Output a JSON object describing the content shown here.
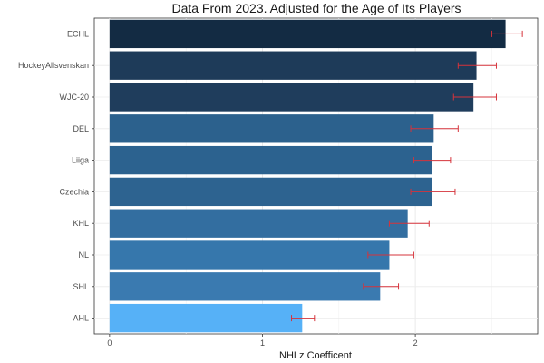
{
  "chart_data": {
    "type": "bar",
    "orientation": "horizontal",
    "title": "Data From 2023. Adjusted for the Age of Its Players",
    "xlabel": "NHLz Coefficent",
    "ylabel": "",
    "xlim": [
      -0.1,
      2.8
    ],
    "xticks": [
      0,
      1,
      2
    ],
    "grid": true,
    "legend": "none",
    "categories": [
      "AHL",
      "SHL",
      "NL",
      "KHL",
      "Czechia",
      "Liiga",
      "DEL",
      "WJC-20",
      "HockeyAllsvenskan",
      "ECHL"
    ],
    "values": [
      1.26,
      1.77,
      1.83,
      1.95,
      2.11,
      2.11,
      2.12,
      2.38,
      2.4,
      2.59
    ],
    "error_low": [
      1.19,
      1.66,
      1.69,
      1.83,
      1.97,
      1.99,
      1.97,
      2.25,
      2.28,
      2.5
    ],
    "error_high": [
      1.34,
      1.89,
      1.99,
      2.09,
      2.26,
      2.23,
      2.28,
      2.53,
      2.53,
      2.7
    ],
    "bar_colors": [
      "#56b1f7",
      "#3a7ab0",
      "#3677ac",
      "#336ea0",
      "#2d6390",
      "#2c628f",
      "#2c618d",
      "#1f3d5c",
      "#1e3b59",
      "#132b43"
    ],
    "error_color": "#d6333b"
  }
}
